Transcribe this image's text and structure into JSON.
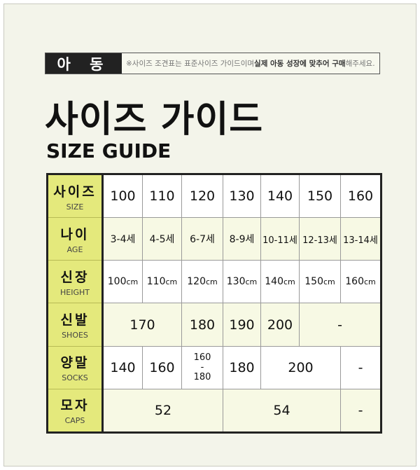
{
  "banner": {
    "tag": "아 동",
    "note_plain": "※사이즈 조견표는 표준사이즈 가이드이며 ",
    "note_bold1": "실제 아동 성장에 맞추어 구매",
    "note_end": "해주세요."
  },
  "title_ko": "사이즈 가이드",
  "title_en": "SIZE GUIDE",
  "rows": [
    {
      "ko": "사이즈",
      "en": "SIZE",
      "cells": [
        "100",
        "110",
        "120",
        "130",
        "140",
        "150",
        "160"
      ]
    },
    {
      "ko": "나이",
      "en": "AGE",
      "cells": [
        "3-4세",
        "4-5세",
        "6-7세",
        "8-9세",
        "10-11세",
        "12-13세",
        "13-14세"
      ]
    },
    {
      "ko": "신장",
      "en": "HEIGHT",
      "cells": [
        "100",
        "110",
        "120",
        "130",
        "140",
        "150",
        "160"
      ],
      "unit": "cm"
    },
    {
      "ko": "신발",
      "en": "SHOES",
      "cells": [
        "170",
        "180",
        "190",
        "200",
        "-"
      ]
    },
    {
      "ko": "양말",
      "en": "SOCKS",
      "cells": [
        "140",
        "160",
        "160",
        "-",
        "180",
        "180",
        "200",
        "-"
      ]
    },
    {
      "ko": "모자",
      "en": "CAPS",
      "cells": [
        "52",
        "54",
        "-"
      ]
    }
  ],
  "colors": {
    "header": "#e4e97c",
    "light_row": "#f7f9e4",
    "banner_tag": "#222222"
  }
}
